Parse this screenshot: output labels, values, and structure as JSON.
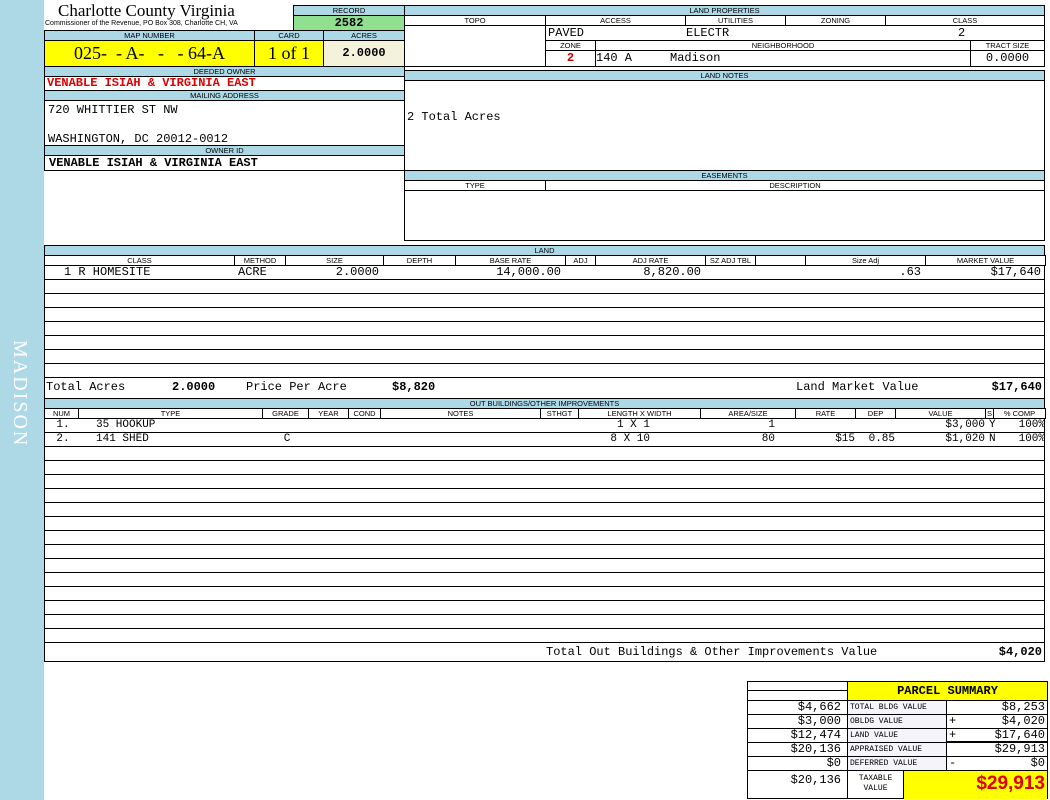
{
  "sidebar": {
    "district": "MADISON"
  },
  "header": {
    "county": "Charlotte County Virginia",
    "subtitle": "Commissioner of the Revenue, PO Box 308, Charlotte CH, VA",
    "record_label": "RECORD",
    "record": "2582"
  },
  "parcel": {
    "map_number_label": "MAP NUMBER",
    "map_number": "025-  - A-   -   - 64-A",
    "card_label": "CARD",
    "card": "1 of 1",
    "acres_label": "ACRES",
    "acres": "2.0000"
  },
  "owner": {
    "deeded_label": "DEEDED OWNER",
    "deeded": "VENABLE ISIAH & VIRGINIA EAST",
    "mailing_label": "MAILING ADDRESS",
    "address1": "720 WHITTIER ST NW",
    "address2": "WASHINGTON, DC 20012-0012",
    "owner_id_label": "OWNER ID",
    "owner_id": "VENABLE ISIAH & VIRGINIA EAST"
  },
  "land_properties": {
    "title": "LAND PROPERTIES",
    "topo_label": "TOPO",
    "access_label": "ACCESS",
    "utilities_label": "UTILITIES",
    "zoning_label": "ZONING",
    "class_label": "CLASS",
    "access": "PAVED",
    "utilities": "ELECTR",
    "class": "2",
    "zone_label": "ZONE",
    "neighborhood_label": "NEIGHBORHOOD",
    "tract_label": "TRACT SIZE",
    "zone": "2",
    "neighborhood_code": "140 A",
    "neighborhood": "Madison",
    "tract_size": "0.0000"
  },
  "land_notes": {
    "title": "LAND NOTES",
    "text": "2 Total Acres"
  },
  "easements": {
    "title": "EASEMENTS",
    "type_label": "TYPE",
    "description_label": "DESCRIPTION"
  },
  "land": {
    "title": "LAND",
    "columns": [
      "CLASS",
      "METHOD",
      "SIZE",
      "DEPTH",
      "BASE RATE",
      "ADJ",
      "ADJ RATE",
      "SZ ADJ TBL",
      "",
      "Size Adj",
      "MARKET VALUE"
    ],
    "rows": [
      [
        "1 R HOMESITE",
        "ACRE",
        "2.0000",
        "",
        "14,000.00",
        "",
        "8,820.00",
        "",
        "",
        ".63",
        "$17,640"
      ]
    ],
    "total_acres_label": "Total Acres",
    "total_acres": "2.0000",
    "price_label": "Price Per Acre",
    "price": "$8,820",
    "market_label": "Land Market Value",
    "market": "$17,640"
  },
  "outbuildings": {
    "title": "OUT BUILDINGS/OTHER IMPROVEMENTS",
    "columns": [
      "NUM",
      "TYPE",
      "GRADE",
      "YEAR",
      "COND",
      "NOTES",
      "STHGT",
      "LENGTH X WIDTH",
      "AREA/SIZE",
      "RATE",
      "DEP",
      "VALUE",
      "S",
      "% COMP"
    ],
    "rows": [
      [
        "1.",
        "35  HOOKUP",
        "",
        "",
        "",
        "",
        "",
        "1 X 1",
        "1",
        "",
        "",
        "$3,000",
        "Y",
        "100%"
      ],
      [
        "2.",
        "141 SHED",
        "C",
        "",
        "",
        "",
        "",
        "8 X 10",
        "80",
        "$15",
        "0.85",
        "$1,020",
        "N",
        "100%"
      ]
    ],
    "total_label": "Total Out Buildings & Other Improvements Value",
    "total": "$4,020"
  },
  "summary": {
    "title": "PARCEL SUMMARY",
    "rows": [
      {
        "prior": "$4,662",
        "label": "TOTAL BLDG VALUE",
        "op": "",
        "value": "$8,253"
      },
      {
        "prior": "$3,000",
        "label": "OBLDG VALUE",
        "op": "+",
        "value": "$4,020"
      },
      {
        "prior": "$12,474",
        "label": "LAND VALUE",
        "op": "+",
        "value": "$17,640"
      },
      {
        "prior": "$20,136",
        "label": "APPRAISED VALUE",
        "op": "",
        "value": "$29,913"
      },
      {
        "prior": "$0",
        "label": "DEFERRED VALUE",
        "op": "-",
        "value": "$0"
      }
    ],
    "taxable_prior": "$20,136",
    "taxable_label": "TAXABLE VALUE",
    "taxable": "$29,913"
  }
}
